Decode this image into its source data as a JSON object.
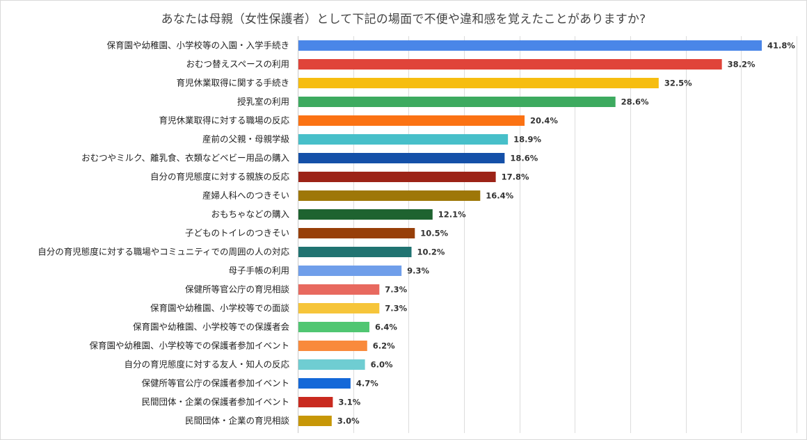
{
  "chart_data": {
    "type": "bar",
    "orientation": "horizontal",
    "title": "あなたは母親（女性保護者）として下記の場面で不便や違和感を覚えたことがありますか?",
    "xlabel": "",
    "ylabel": "",
    "xlim": [
      0,
      45
    ],
    "grid": true,
    "value_suffix": "%",
    "categories": [
      "保育園や幼稚園、小学校等の入園・入学手続き",
      "おむつ替えスペースの利用",
      "育児休業取得に関する手続き",
      "授乳室の利用",
      "育児休業取得に対する職場の反応",
      "産前の父親・母親学級",
      "おむつやミルク、離乳食、衣類などベビー用品の購入",
      "自分の育児態度に対する親族の反応",
      "産婦人科へのつきそい",
      "おもちゃなどの購入",
      "子どものトイレのつきそい",
      "自分の育児態度に対する職場やコミュニティでの周囲の人の対応",
      "母子手帳の利用",
      "保健所等官公庁の育児相談",
      "保育園や幼稚園、小学校等での面談",
      "保育園や幼稚園、小学校等での保護者会",
      "保育園や幼稚園、小学校等での保護者参加イベント",
      "自分の育児態度に対する友人・知人の反応",
      "保健所等官公庁の保護者参加イベント",
      "民間団体・企業の保護者参加イベント",
      "民間団体・企業の育児相談"
    ],
    "values": [
      41.8,
      38.2,
      32.5,
      28.6,
      20.4,
      18.9,
      18.6,
      17.8,
      16.4,
      12.1,
      10.5,
      10.2,
      9.3,
      7.3,
      7.3,
      6.4,
      6.2,
      6.0,
      4.7,
      3.1,
      3.0
    ],
    "value_labels": [
      "41.8%",
      "38.2%",
      "32.5%",
      "28.6%",
      "20.4%",
      "18.9%",
      "18.6%",
      "17.8%",
      "16.4%",
      "12.1%",
      "10.5%",
      "10.2%",
      "9.3%",
      "7.3%",
      "7.3%",
      "6.4%",
      "6.2%",
      "6.0%",
      "4.7%",
      "3.1%",
      "3.0%"
    ],
    "colors": [
      "#4a86e8",
      "#e0443a",
      "#f6bd10",
      "#3daa5f",
      "#fb7213",
      "#47bfc9",
      "#1450a8",
      "#9c2317",
      "#9e7708",
      "#1e6330",
      "#973f09",
      "#207371",
      "#6f9eea",
      "#e8695f",
      "#f6c53a",
      "#50c672",
      "#f98a3c",
      "#6fcdd2",
      "#1468d8",
      "#c92a1f",
      "#c79707"
    ]
  }
}
